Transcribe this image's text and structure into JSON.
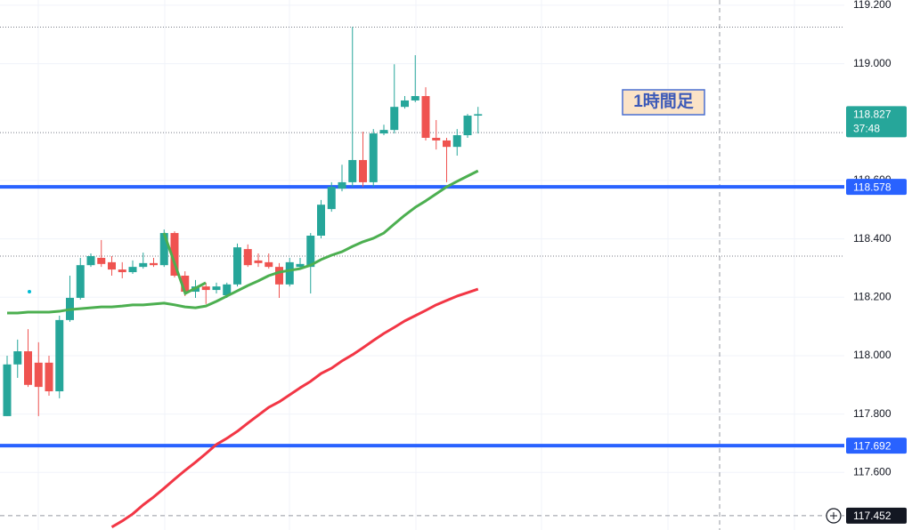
{
  "chart_data": {
    "type": "candlestick",
    "categories": [
      null,
      null,
      null,
      null,
      null,
      null,
      null,
      null,
      null,
      null,
      null,
      null,
      null,
      null,
      null,
      null,
      null,
      null,
      null,
      null,
      null,
      null,
      null,
      null,
      null,
      null,
      null,
      null,
      null,
      null,
      null,
      null,
      null,
      null,
      null,
      null,
      null,
      null,
      null,
      null,
      null,
      null,
      null,
      null,
      null,
      null
    ],
    "open": [
      117.793,
      117.97,
      118.015,
      117.976,
      117.976,
      117.878,
      118.122,
      118.198,
      118.31,
      118.335,
      118.32,
      118.295,
      118.286,
      118.304,
      118.317,
      118.31,
      118.42,
      118.274,
      118.219,
      118.237,
      118.225,
      118.207,
      118.244,
      118.365,
      118.326,
      118.32,
      118.304,
      118.244,
      118.304,
      118.304,
      118.411,
      118.502,
      118.572,
      118.594,
      118.67,
      118.594,
      118.761,
      118.773,
      118.852,
      118.874,
      118.889,
      118.746,
      118.737,
      118.715,
      118.755,
      118.822
    ],
    "high": [
      118.0,
      118.055,
      118.091,
      118.046,
      118.0,
      118.137,
      118.274,
      118.335,
      118.35,
      118.396,
      118.341,
      118.32,
      118.326,
      118.353,
      118.335,
      118.432,
      118.426,
      118.289,
      118.259,
      118.25,
      118.25,
      118.25,
      118.384,
      118.381,
      118.35,
      118.35,
      118.317,
      118.335,
      118.335,
      118.42,
      118.533,
      118.594,
      118.654,
      119.126,
      118.767,
      118.776,
      118.791,
      118.998,
      118.889,
      119.029,
      118.919,
      118.807,
      118.746,
      118.776,
      118.828,
      118.852
    ],
    "low": [
      117.793,
      117.924,
      117.893,
      117.793,
      117.863,
      117.854,
      118.116,
      118.192,
      118.304,
      118.304,
      118.274,
      118.265,
      118.28,
      118.298,
      118.304,
      118.304,
      118.268,
      118.204,
      118.198,
      118.177,
      118.213,
      118.198,
      118.237,
      118.304,
      118.304,
      118.298,
      118.198,
      118.237,
      118.298,
      118.213,
      118.402,
      118.493,
      118.563,
      118.578,
      118.578,
      118.578,
      118.755,
      118.761,
      118.846,
      118.868,
      118.737,
      118.706,
      118.594,
      118.685,
      118.746,
      118.761
    ],
    "close": [
      117.97,
      118.015,
      117.9,
      117.893,
      117.878,
      118.122,
      118.198,
      118.31,
      118.341,
      118.314,
      118.295,
      118.286,
      118.304,
      118.317,
      118.31,
      118.42,
      118.274,
      118.219,
      118.237,
      118.225,
      118.237,
      118.244,
      118.371,
      118.31,
      118.317,
      118.304,
      118.244,
      118.32,
      118.314,
      118.411,
      118.517,
      118.578,
      118.594,
      118.67,
      118.594,
      118.761,
      118.773,
      118.852,
      118.874,
      118.889,
      118.746,
      118.737,
      118.715,
      118.755,
      118.822,
      118.827
    ],
    "up_color": "#26a69a",
    "down_color": "#ef5350",
    "overlays": [
      {
        "color": "#4caf50",
        "values": [
          118.146,
          118.146,
          118.149,
          118.149,
          118.149,
          118.152,
          118.158,
          118.161,
          118.164,
          118.167,
          118.167,
          118.17,
          118.174,
          118.174,
          118.177,
          118.18,
          118.174,
          118.167,
          118.164,
          118.17,
          118.186,
          118.204,
          118.222,
          118.24,
          118.256,
          118.274,
          118.286,
          118.292,
          118.298,
          118.31,
          118.329,
          118.344,
          118.356,
          118.374,
          118.39,
          118.402,
          118.42,
          118.451,
          118.481,
          118.508,
          118.53,
          118.554,
          118.578,
          118.597,
          118.615,
          118.633
        ]
      },
      {
        "color": "#f23645",
        "values": [
          null,
          null,
          null,
          null,
          null,
          null,
          null,
          null,
          null,
          null,
          117.413,
          117.434,
          117.458,
          117.489,
          117.516,
          117.546,
          117.577,
          117.607,
          117.635,
          117.665,
          117.696,
          117.717,
          117.741,
          117.769,
          117.796,
          117.823,
          117.842,
          117.866,
          117.89,
          117.912,
          117.939,
          117.957,
          117.982,
          118.003,
          118.027,
          118.052,
          118.076,
          118.097,
          118.119,
          118.137,
          118.155,
          118.174,
          118.189,
          118.204,
          118.216,
          118.228
        ]
      }
    ],
    "ylim": [
      117.403,
      119.218
    ],
    "yticks": [
      {
        "value": 119.2,
        "label": "119.200"
      },
      {
        "value": 119.0,
        "label": "119.000"
      },
      {
        "value": 118.6,
        "label": "118.600"
      },
      {
        "value": 118.4,
        "label": "118.400"
      },
      {
        "value": 118.2,
        "label": "118.200"
      },
      {
        "value": 118.0,
        "label": "118.000"
      },
      {
        "value": 117.8,
        "label": "117.800"
      },
      {
        "value": 117.6,
        "label": "117.600"
      }
    ],
    "grid": true,
    "dotted_levels": [
      119.125,
      118.764,
      118.341
    ],
    "horizontal_lines": [
      {
        "value": 118.578,
        "label": "118.578",
        "color": "#2962ff"
      },
      {
        "value": 117.692,
        "label": "117.692",
        "color": "#2962ff"
      }
    ],
    "last_price": {
      "value": 118.827,
      "label": "118.827",
      "countdown": "37:48",
      "color": "#26a69a"
    },
    "crosshair": {
      "value": 117.452,
      "label": "117.452",
      "color": "#131722"
    },
    "annotation": "1時間足"
  }
}
